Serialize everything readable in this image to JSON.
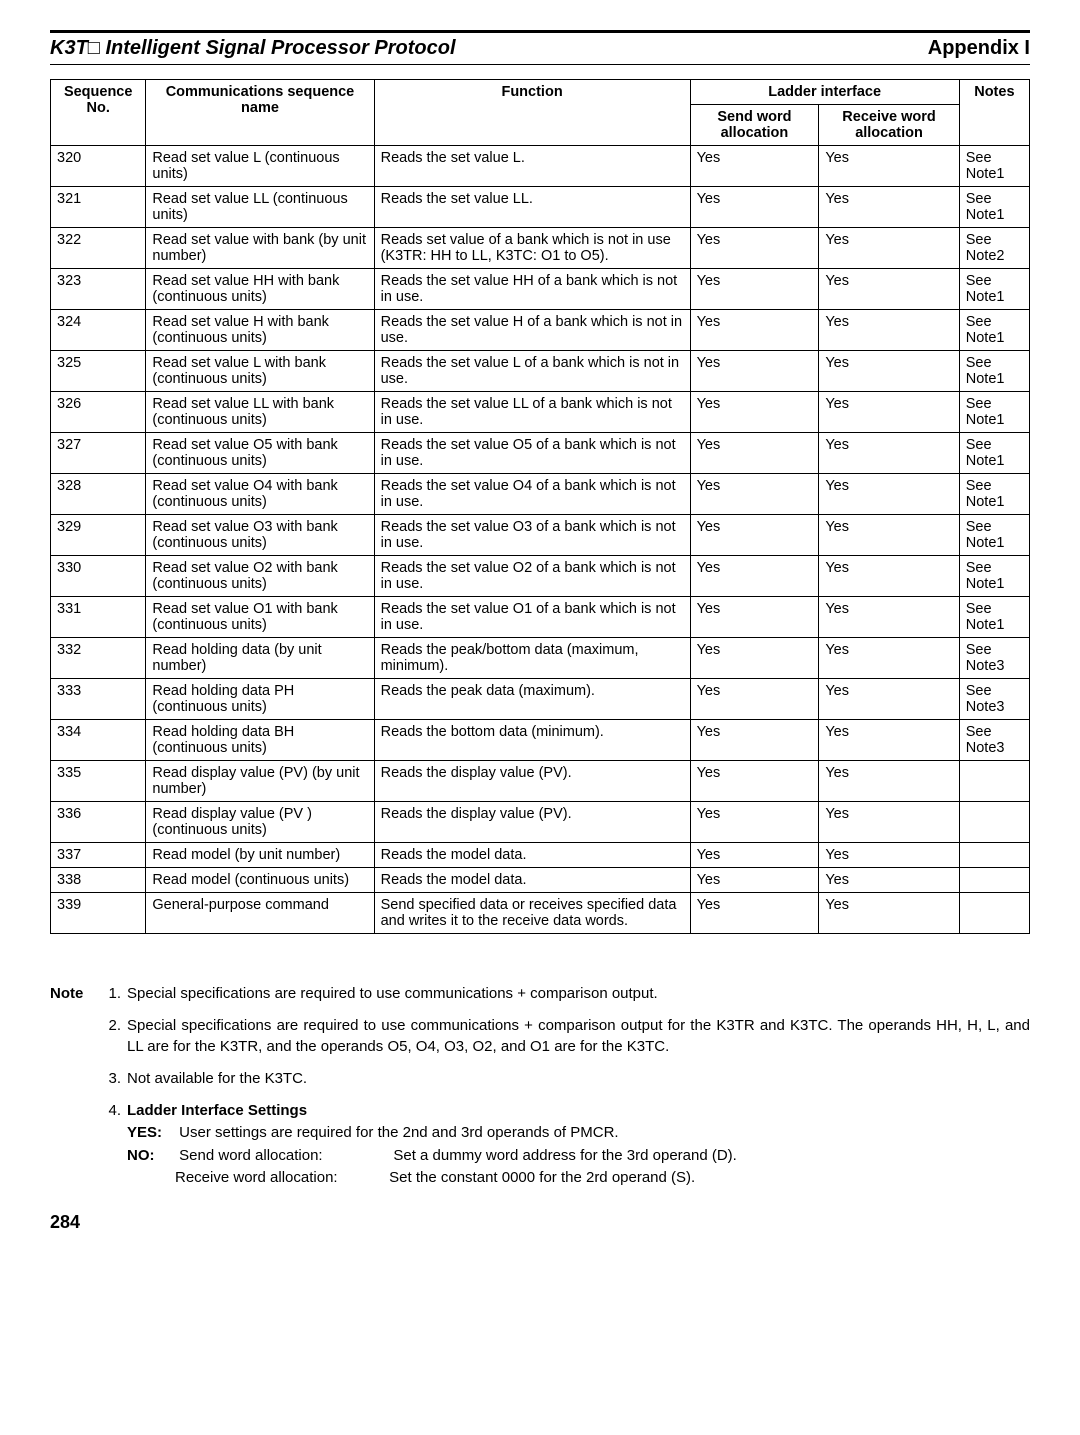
{
  "header": {
    "left_prefix": "K3T",
    "left_box": "□",
    "left_rest": " Intelligent Signal Processor Protocol",
    "right": "Appendix I"
  },
  "table": {
    "headers": {
      "seq": "Sequence No.",
      "comm": "Communications sequence name",
      "func": "Function",
      "ladder": "Ladder interface",
      "send": "Send word allocation",
      "recv": "Receive word allocation",
      "notes": "Notes"
    },
    "rows": [
      {
        "seq": "320",
        "comm": "Read set value L (continuous units)",
        "func": "Reads the set value L.",
        "send": "Yes",
        "recv": "Yes",
        "notes": "See Note1"
      },
      {
        "seq": "321",
        "comm": "Read set value LL (continuous units)",
        "func": "Reads the set value LL.",
        "send": "Yes",
        "recv": "Yes",
        "notes": "See Note1"
      },
      {
        "seq": "322",
        "comm": "Read set value with bank (by unit number)",
        "func": "Reads set value of a bank which is not in use (K3TR: HH to LL, K3TC: O1 to O5).",
        "send": "Yes",
        "recv": "Yes",
        "notes": "See Note2"
      },
      {
        "seq": "323",
        "comm": "Read set value HH with bank (continuous units)",
        "func": "Reads the set value HH of a bank which is not in use.",
        "send": "Yes",
        "recv": "Yes",
        "notes": "See Note1"
      },
      {
        "seq": "324",
        "comm": "Read set value H with bank (continuous units)",
        "func": "Reads the set value H of a bank which is not in use.",
        "send": "Yes",
        "recv": "Yes",
        "notes": "See Note1"
      },
      {
        "seq": "325",
        "comm": "Read set value L with bank (continuous units)",
        "func": "Reads the set value L of a bank which is not in use.",
        "send": "Yes",
        "recv": "Yes",
        "notes": "See Note1"
      },
      {
        "seq": "326",
        "comm": "Read set value LL with bank (continuous units)",
        "func": "Reads the set value LL of a bank which is not in use.",
        "send": "Yes",
        "recv": "Yes",
        "notes": "See Note1"
      },
      {
        "seq": "327",
        "comm": "Read set value O5 with bank (continuous units)",
        "func": "Reads the set value O5 of a bank which is not in use.",
        "send": "Yes",
        "recv": "Yes",
        "notes": "See Note1"
      },
      {
        "seq": "328",
        "comm": "Read set value O4 with bank (continuous units)",
        "func": "Reads the set value O4 of a bank which is not in use.",
        "send": "Yes",
        "recv": "Yes",
        "notes": "See Note1"
      },
      {
        "seq": "329",
        "comm": "Read set value O3 with bank (continuous units)",
        "func": "Reads the set value O3 of a bank which is not in use.",
        "send": "Yes",
        "recv": "Yes",
        "notes": "See Note1"
      },
      {
        "seq": "330",
        "comm": "Read set value O2 with bank (continuous units)",
        "func": "Reads the set value O2 of a bank which is not in use.",
        "send": "Yes",
        "recv": "Yes",
        "notes": "See Note1"
      },
      {
        "seq": "331",
        "comm": "Read set value O1 with bank (continuous units)",
        "func": "Reads the set value O1 of a bank which is not in use.",
        "send": "Yes",
        "recv": "Yes",
        "notes": "See Note1"
      },
      {
        "seq": "332",
        "comm": "Read holding data (by unit number)",
        "func": "Reads the peak/bottom data (maximum, minimum).",
        "send": "Yes",
        "recv": "Yes",
        "notes": "See Note3"
      },
      {
        "seq": "333",
        "comm": "Read holding data PH (continuous units)",
        "func": "Reads the peak data (maximum).",
        "send": "Yes",
        "recv": "Yes",
        "notes": "See Note3"
      },
      {
        "seq": "334",
        "comm": "Read holding data BH (continuous units)",
        "func": "Reads the bottom data (minimum).",
        "send": "Yes",
        "recv": "Yes",
        "notes": "See Note3"
      },
      {
        "seq": "335",
        "comm": "Read display value (PV) (by unit number)",
        "func": "Reads the display value (PV).",
        "send": "Yes",
        "recv": "Yes",
        "notes": ""
      },
      {
        "seq": "336",
        "comm": "Read display value (PV ) (continuous units)",
        "func": "Reads the display value (PV).",
        "send": "Yes",
        "recv": "Yes",
        "notes": ""
      },
      {
        "seq": "337",
        "comm": "Read model (by unit number)",
        "func": "Reads the model data.",
        "send": "Yes",
        "recv": "Yes",
        "notes": ""
      },
      {
        "seq": "338",
        "comm": "Read model (continuous units)",
        "func": "Reads the model data.",
        "send": "Yes",
        "recv": "Yes",
        "notes": ""
      },
      {
        "seq": "339",
        "comm": "General-purpose command",
        "func": "Send specified data or receives specified data and writes it to the receive data words.",
        "send": "Yes",
        "recv": "Yes",
        "notes": ""
      }
    ]
  },
  "notes": {
    "lead": "Note",
    "items": [
      {
        "num": "1.",
        "body": "Special specifications are required to use communications + comparison output."
      },
      {
        "num": "2.",
        "body": "Special specifications are required to use communications + comparison output for the K3TR and K3TC. The operands HH, H, L, and LL are for the K3TR, and the operands O5, O4, O3, O2, and O1 are for the K3TC."
      },
      {
        "num": "3.",
        "body": "Not available for the K3TC."
      }
    ],
    "item4": {
      "num": "4.",
      "title": "Ladder Interface Settings",
      "yes_label": "YES:",
      "yes_text": "User settings are required for the 2nd and 3rd operands of PMCR.",
      "no_label": "NO:",
      "no_line1_left": "Send word allocation:",
      "no_line1_right": "Set a dummy word address for the 3rd operand (D).",
      "no_line2_left": "Receive word allocation:",
      "no_line2_right": "Set the constant 0000 for the 2rd operand (S)."
    }
  },
  "page_number": "284"
}
